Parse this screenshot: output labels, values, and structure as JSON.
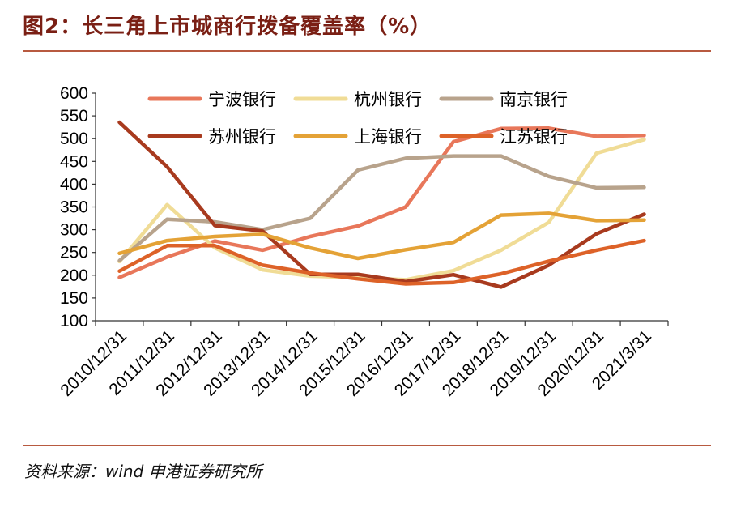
{
  "figure": {
    "title": "图2：长三角上市城商行拨备覆盖率（%）",
    "source": "资料来源：wind  申港证券研究所"
  },
  "chart_data": {
    "type": "line",
    "title": "图2：长三角上市城商行拨备覆盖率（%）",
    "xlabel": "",
    "ylabel": "",
    "ylim": [
      100,
      600
    ],
    "yticks": [
      100,
      150,
      200,
      250,
      300,
      350,
      400,
      450,
      500,
      550,
      600
    ],
    "grid": false,
    "legend_position": "top",
    "categories": [
      "2010/12/31",
      "2011/12/31",
      "2012/12/31",
      "2013/12/31",
      "2014/12/31",
      "2015/12/31",
      "2016/12/31",
      "2017/12/31",
      "2018/12/31",
      "2019/12/31",
      "2020/12/31",
      "2021/3/31"
    ],
    "series": [
      {
        "name": "宁波银行",
        "color": "#e8775a",
        "values": [
          195,
          240,
          275,
          255,
          285,
          308,
          350,
          493,
          522,
          523,
          505,
          507
        ]
      },
      {
        "name": "杭州银行",
        "color": "#f0dc96",
        "values": [
          230,
          355,
          260,
          212,
          198,
          195,
          190,
          210,
          255,
          316,
          468,
          498
        ]
      },
      {
        "name": "南京银行",
        "color": "#b8a38c",
        "values": [
          232,
          323,
          317,
          300,
          325,
          431,
          457,
          462,
          462,
          417,
          392,
          393
        ]
      },
      {
        "name": "苏州银行",
        "color": "#a83a1e",
        "values": [
          536,
          438,
          309,
          297,
          202,
          202,
          186,
          201,
          174,
          222,
          291,
          334
        ]
      },
      {
        "name": "上海银行",
        "color": "#e4a236",
        "values": [
          248,
          276,
          285,
          290,
          260,
          237,
          256,
          272,
          332,
          336,
          320,
          321
        ]
      },
      {
        "name": "江苏银行",
        "color": "#dd6228",
        "values": [
          209,
          265,
          265,
          222,
          205,
          192,
          181,
          184,
          203,
          231,
          255,
          276
        ]
      }
    ]
  }
}
